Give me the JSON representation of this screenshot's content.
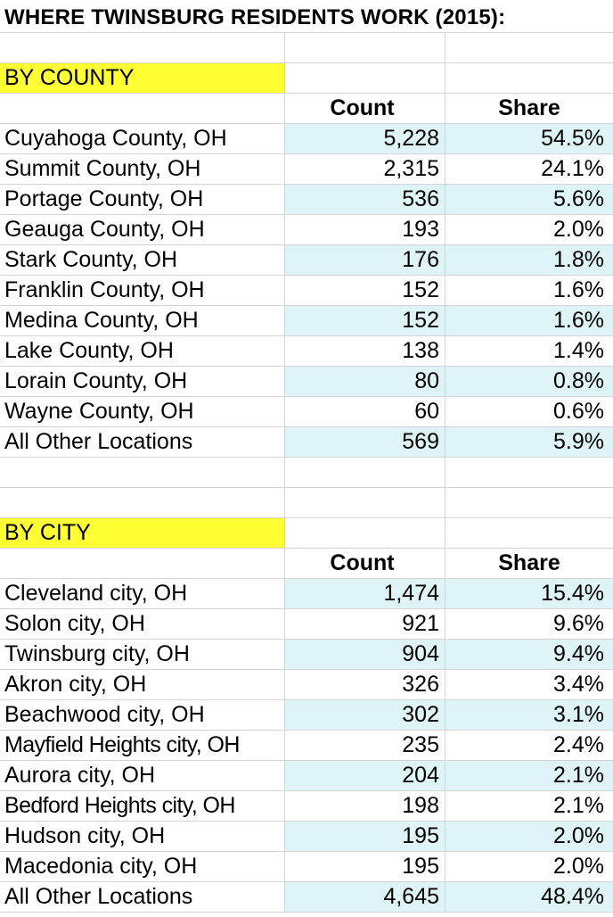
{
  "title": "WHERE TWINSBURG RESIDENTS WORK (2015):",
  "headers": {
    "count": "Count",
    "share": "Share"
  },
  "colors": {
    "section_highlight": "#ffff33",
    "row_shade": "#dff4f7",
    "gridline": "#d4d4d4"
  },
  "by_county": {
    "label": "BY COUNTY",
    "rows": [
      {
        "name": "Cuyahoga County, OH",
        "count": "5,228",
        "share": "54.5%"
      },
      {
        "name": "Summit County, OH",
        "count": "2,315",
        "share": "24.1%"
      },
      {
        "name": "Portage County, OH",
        "count": "536",
        "share": "5.6%"
      },
      {
        "name": "Geauga County, OH",
        "count": "193",
        "share": "2.0%"
      },
      {
        "name": "Stark County, OH",
        "count": "176",
        "share": "1.8%"
      },
      {
        "name": "Franklin County, OH",
        "count": "152",
        "share": "1.6%"
      },
      {
        "name": "Medina County, OH",
        "count": "152",
        "share": "1.6%"
      },
      {
        "name": "Lake County, OH",
        "count": "138",
        "share": "1.4%"
      },
      {
        "name": "Lorain County, OH",
        "count": "80",
        "share": "0.8%"
      },
      {
        "name": "Wayne County, OH",
        "count": "60",
        "share": "0.6%"
      },
      {
        "name": "All Other Locations",
        "count": "569",
        "share": "5.9%"
      }
    ]
  },
  "by_city": {
    "label": "BY CITY",
    "rows": [
      {
        "name": "Cleveland city, OH",
        "count": "1,474",
        "share": "15.4%"
      },
      {
        "name": "Solon city, OH",
        "count": "921",
        "share": "9.6%"
      },
      {
        "name": "Twinsburg city, OH",
        "count": "904",
        "share": "9.4%"
      },
      {
        "name": "Akron city, OH",
        "count": "326",
        "share": "3.4%"
      },
      {
        "name": "Beachwood city, OH",
        "count": "302",
        "share": "3.1%"
      },
      {
        "name": "Mayfield Heights city, OH",
        "count": "235",
        "share": "2.4%"
      },
      {
        "name": "Aurora city, OH",
        "count": "204",
        "share": "2.1%"
      },
      {
        "name": "Bedford Heights city, OH",
        "count": "198",
        "share": "2.1%"
      },
      {
        "name": "Hudson city, OH",
        "count": "195",
        "share": "2.0%"
      },
      {
        "name": "Macedonia city, OH",
        "count": "195",
        "share": "2.0%"
      },
      {
        "name": "All Other Locations",
        "count": "4,645",
        "share": "48.4%"
      }
    ]
  }
}
